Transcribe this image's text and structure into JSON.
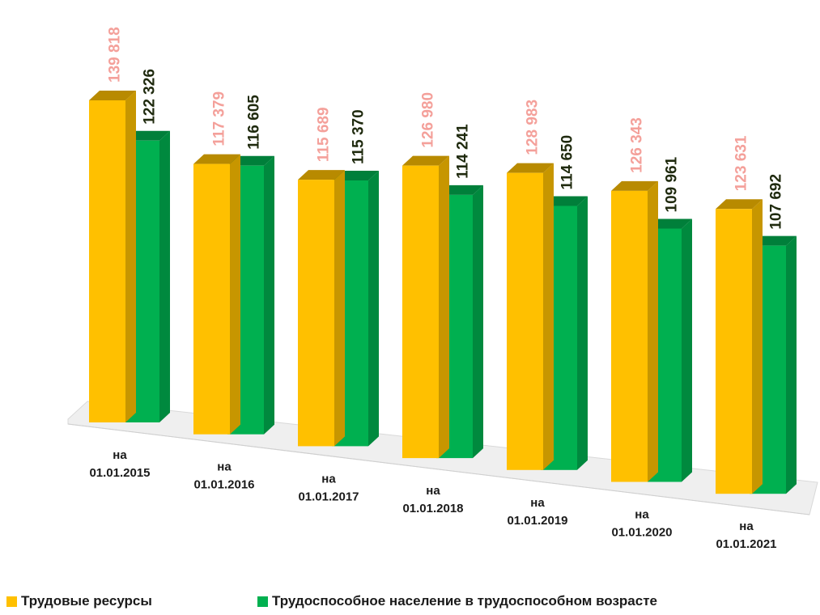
{
  "chart_data": {
    "type": "bar",
    "categories": [
      "на\n01.01.2015",
      "на\n01.01.2016",
      "на\n01.01.2017",
      "на\n01.01.2018",
      "на\n01.01.2019",
      "на\n01.01.2020",
      "на\n01.01.2021"
    ],
    "series": [
      {
        "name": "Трудовые ресурсы",
        "values": [
          139818,
          117379,
          115689,
          126980,
          128983,
          126343,
          123631
        ],
        "labels": [
          "139 818",
          "117 379",
          "115 689",
          "126 980",
          "128 983",
          "126 343",
          "123 631"
        ],
        "color": "#FFC000",
        "label_color": "#F4A09A"
      },
      {
        "name": "Трудоспособное население в трудоспособном возрасте",
        "values": [
          122326,
          116605,
          115370,
          114241,
          114650,
          109961,
          107692
        ],
        "labels": [
          "122 326",
          "116 605",
          "115 370",
          "114 241",
          "114 650",
          "109 961",
          "107 692"
        ],
        "color": "#00B050",
        "label_color": "#1F2A0E"
      }
    ],
    "title": "",
    "xlabel": "",
    "ylabel": "",
    "legend_position": "bottom",
    "grid": false,
    "style": "3d-clustered-column"
  }
}
